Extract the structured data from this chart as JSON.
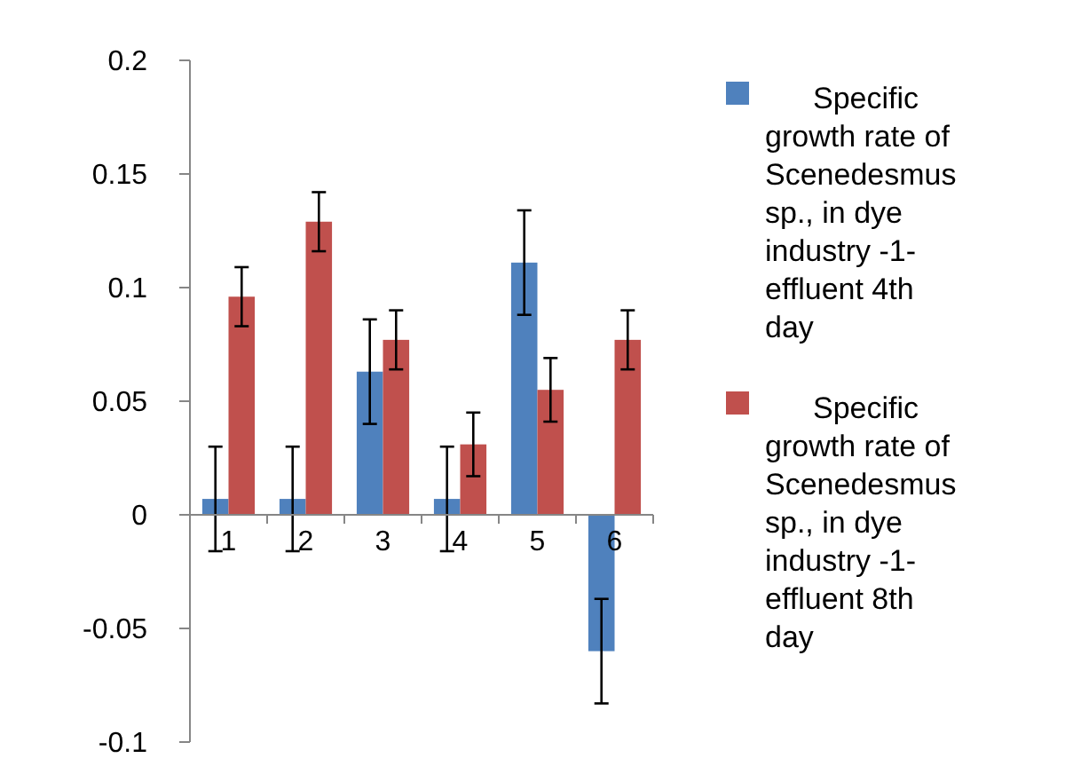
{
  "chart_data": {
    "type": "bar",
    "categories": [
      "1",
      "2",
      "3",
      "4",
      "5",
      "6"
    ],
    "series": [
      {
        "name": "Specific growth rate of Scenedesmus sp., in dye industry -1- effluent 4th day",
        "color": "#4f81bd",
        "values": [
          0.007,
          0.007,
          0.063,
          0.007,
          0.111,
          -0.06
        ],
        "errors": [
          0.023,
          0.023,
          0.023,
          0.023,
          0.023,
          0.023
        ]
      },
      {
        "name": "Specific growth rate of Scenedesmus sp., in dye industry -1- effluent 8th day",
        "color": "#c0504d",
        "values": [
          0.096,
          0.129,
          0.077,
          0.031,
          0.055,
          0.077
        ],
        "errors": [
          0.013,
          0.013,
          0.013,
          0.014,
          0.014,
          0.013
        ]
      }
    ],
    "ylim": [
      -0.1,
      0.2
    ],
    "yticks": [
      {
        "value": -0.1,
        "label": "-0.1"
      },
      {
        "value": -0.05,
        "label": "-0.05"
      },
      {
        "value": 0,
        "label": "0"
      },
      {
        "value": 0.05,
        "label": "0.05"
      },
      {
        "value": 0.1,
        "label": "0.1"
      },
      {
        "value": 0.15,
        "label": "0.15"
      },
      {
        "value": 0.2,
        "label": "0.2"
      }
    ],
    "grid": false,
    "legend": "right"
  }
}
